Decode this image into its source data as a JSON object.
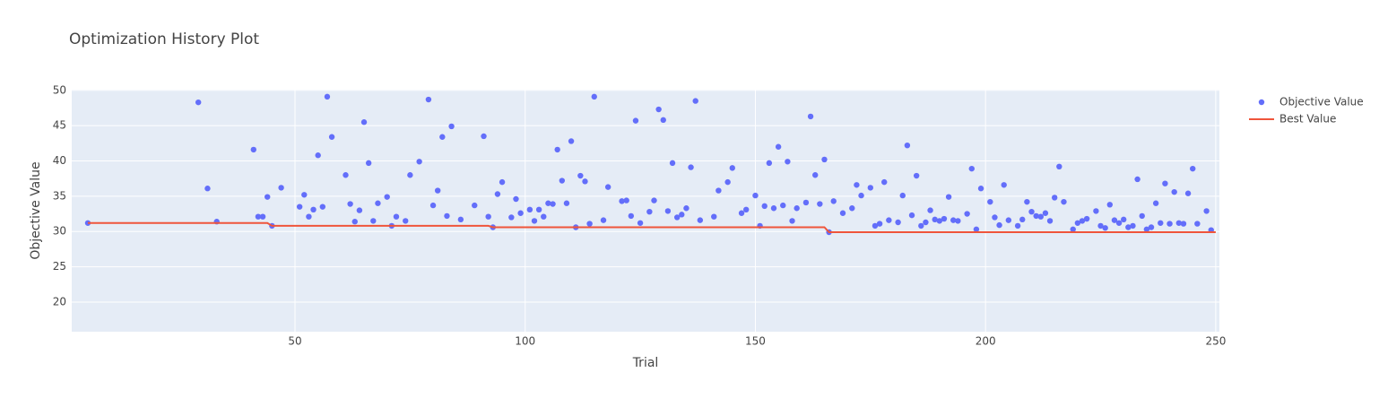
{
  "chart_data": {
    "type": "scatter",
    "title": "Optimization History Plot",
    "x_label": "Trial",
    "y_label": "Objective Value",
    "xlim": [
      1.5,
      250.8
    ],
    "ylim": [
      15.8,
      50.1
    ],
    "xticks": [
      50,
      100,
      150,
      200,
      250
    ],
    "yticks": [
      20,
      25,
      30,
      35,
      40,
      45,
      50
    ],
    "grid": true,
    "legend": "right",
    "series": [
      {
        "name": "Objective Value",
        "color": "#636efa",
        "mode": "markers",
        "x": [
          5,
          29,
          31,
          33,
          41,
          42,
          43,
          44,
          45,
          47,
          51,
          52,
          53,
          54,
          55,
          56,
          57,
          58,
          61,
          62,
          63,
          64,
          65,
          66,
          67,
          68,
          70,
          71,
          72,
          74,
          75,
          77,
          79,
          80,
          81,
          82,
          83,
          84,
          86,
          89,
          91,
          92,
          93,
          94,
          95,
          97,
          98,
          99,
          101,
          102,
          103,
          104,
          105,
          106,
          107,
          108,
          109,
          110,
          111,
          112,
          113,
          114,
          115,
          117,
          118,
          121,
          122,
          123,
          124,
          125,
          127,
          128,
          129,
          130,
          131,
          132,
          133,
          134,
          135,
          136,
          137,
          138,
          141,
          142,
          144,
          145,
          147,
          148,
          150,
          151,
          152,
          153,
          154,
          155,
          156,
          157,
          158,
          159,
          161,
          162,
          163,
          164,
          165,
          166,
          167,
          169,
          171,
          172,
          173,
          175,
          176,
          177,
          178,
          179,
          181,
          182,
          183,
          184,
          185,
          186,
          187,
          188,
          189,
          190,
          191,
          192,
          193,
          194,
          196,
          197,
          198,
          199,
          201,
          202,
          203,
          204,
          205,
          207,
          208,
          209,
          210,
          211,
          212,
          213,
          214,
          215,
          216,
          217,
          219,
          220,
          221,
          222,
          224,
          225,
          226,
          227,
          228,
          229,
          230,
          231,
          232,
          233,
          234,
          235,
          236,
          237,
          238,
          239,
          240,
          241,
          242,
          243,
          244,
          245,
          246,
          248,
          249
        ],
        "values": [
          31.2,
          48.3,
          36.1,
          31.4,
          41.6,
          32.1,
          32.1,
          34.9,
          30.8,
          36.2,
          33.5,
          35.2,
          32.1,
          33.1,
          40.8,
          33.5,
          49.1,
          43.4,
          38.0,
          33.9,
          31.4,
          33.0,
          45.5,
          39.7,
          31.5,
          34.0,
          34.9,
          30.8,
          32.1,
          31.5,
          38.0,
          39.9,
          48.7,
          33.7,
          35.8,
          43.4,
          32.2,
          44.9,
          31.7,
          33.7,
          43.5,
          32.1,
          30.6,
          35.3,
          37.0,
          32.0,
          34.6,
          32.6,
          33.1,
          31.5,
          33.1,
          32.1,
          34.0,
          33.9,
          41.6,
          37.2,
          34.0,
          42.8,
          30.6,
          37.9,
          37.1,
          31.1,
          49.1,
          31.6,
          36.3,
          34.3,
          34.4,
          32.2,
          45.7,
          31.2,
          32.8,
          34.4,
          47.3,
          45.8,
          32.9,
          39.7,
          32.0,
          32.4,
          33.3,
          39.1,
          48.5,
          31.6,
          32.1,
          35.8,
          37.0,
          39.0,
          32.6,
          33.1,
          35.1,
          30.8,
          33.6,
          39.7,
          33.3,
          42.0,
          33.7,
          39.9,
          31.5,
          33.3,
          34.1,
          46.3,
          38.0,
          33.9,
          40.2,
          29.9,
          34.3,
          32.6,
          33.3,
          36.6,
          35.1,
          36.2,
          30.8,
          31.1,
          37.0,
          31.6,
          31.3,
          35.1,
          42.2,
          32.3,
          37.9,
          30.8,
          31.3,
          33.0,
          31.7,
          31.5,
          31.8,
          34.9,
          31.6,
          31.5,
          32.5,
          38.9,
          30.3,
          36.1,
          34.2,
          32.0,
          30.9,
          36.6,
          31.6,
          30.8,
          31.7,
          34.2,
          32.8,
          32.2,
          32.1,
          32.6,
          31.5,
          34.8,
          39.2,
          34.2,
          30.3,
          31.2,
          31.5,
          31.8,
          32.9,
          30.8,
          30.5,
          33.8,
          31.6,
          31.2,
          31.7,
          30.6,
          30.8,
          37.4,
          32.2,
          30.3,
          30.6,
          34.0,
          31.2,
          36.8,
          31.1,
          35.6,
          31.2,
          31.1,
          35.4,
          38.9,
          31.1,
          32.9,
          30.2
        ]
      },
      {
        "name": "Best Value",
        "color": "#ef553b",
        "mode": "line",
        "x": [
          5,
          44,
          45,
          92,
          93,
          165,
          166,
          250
        ],
        "values": [
          31.2,
          31.2,
          30.8,
          30.8,
          30.6,
          30.6,
          29.9,
          29.9
        ]
      }
    ]
  }
}
